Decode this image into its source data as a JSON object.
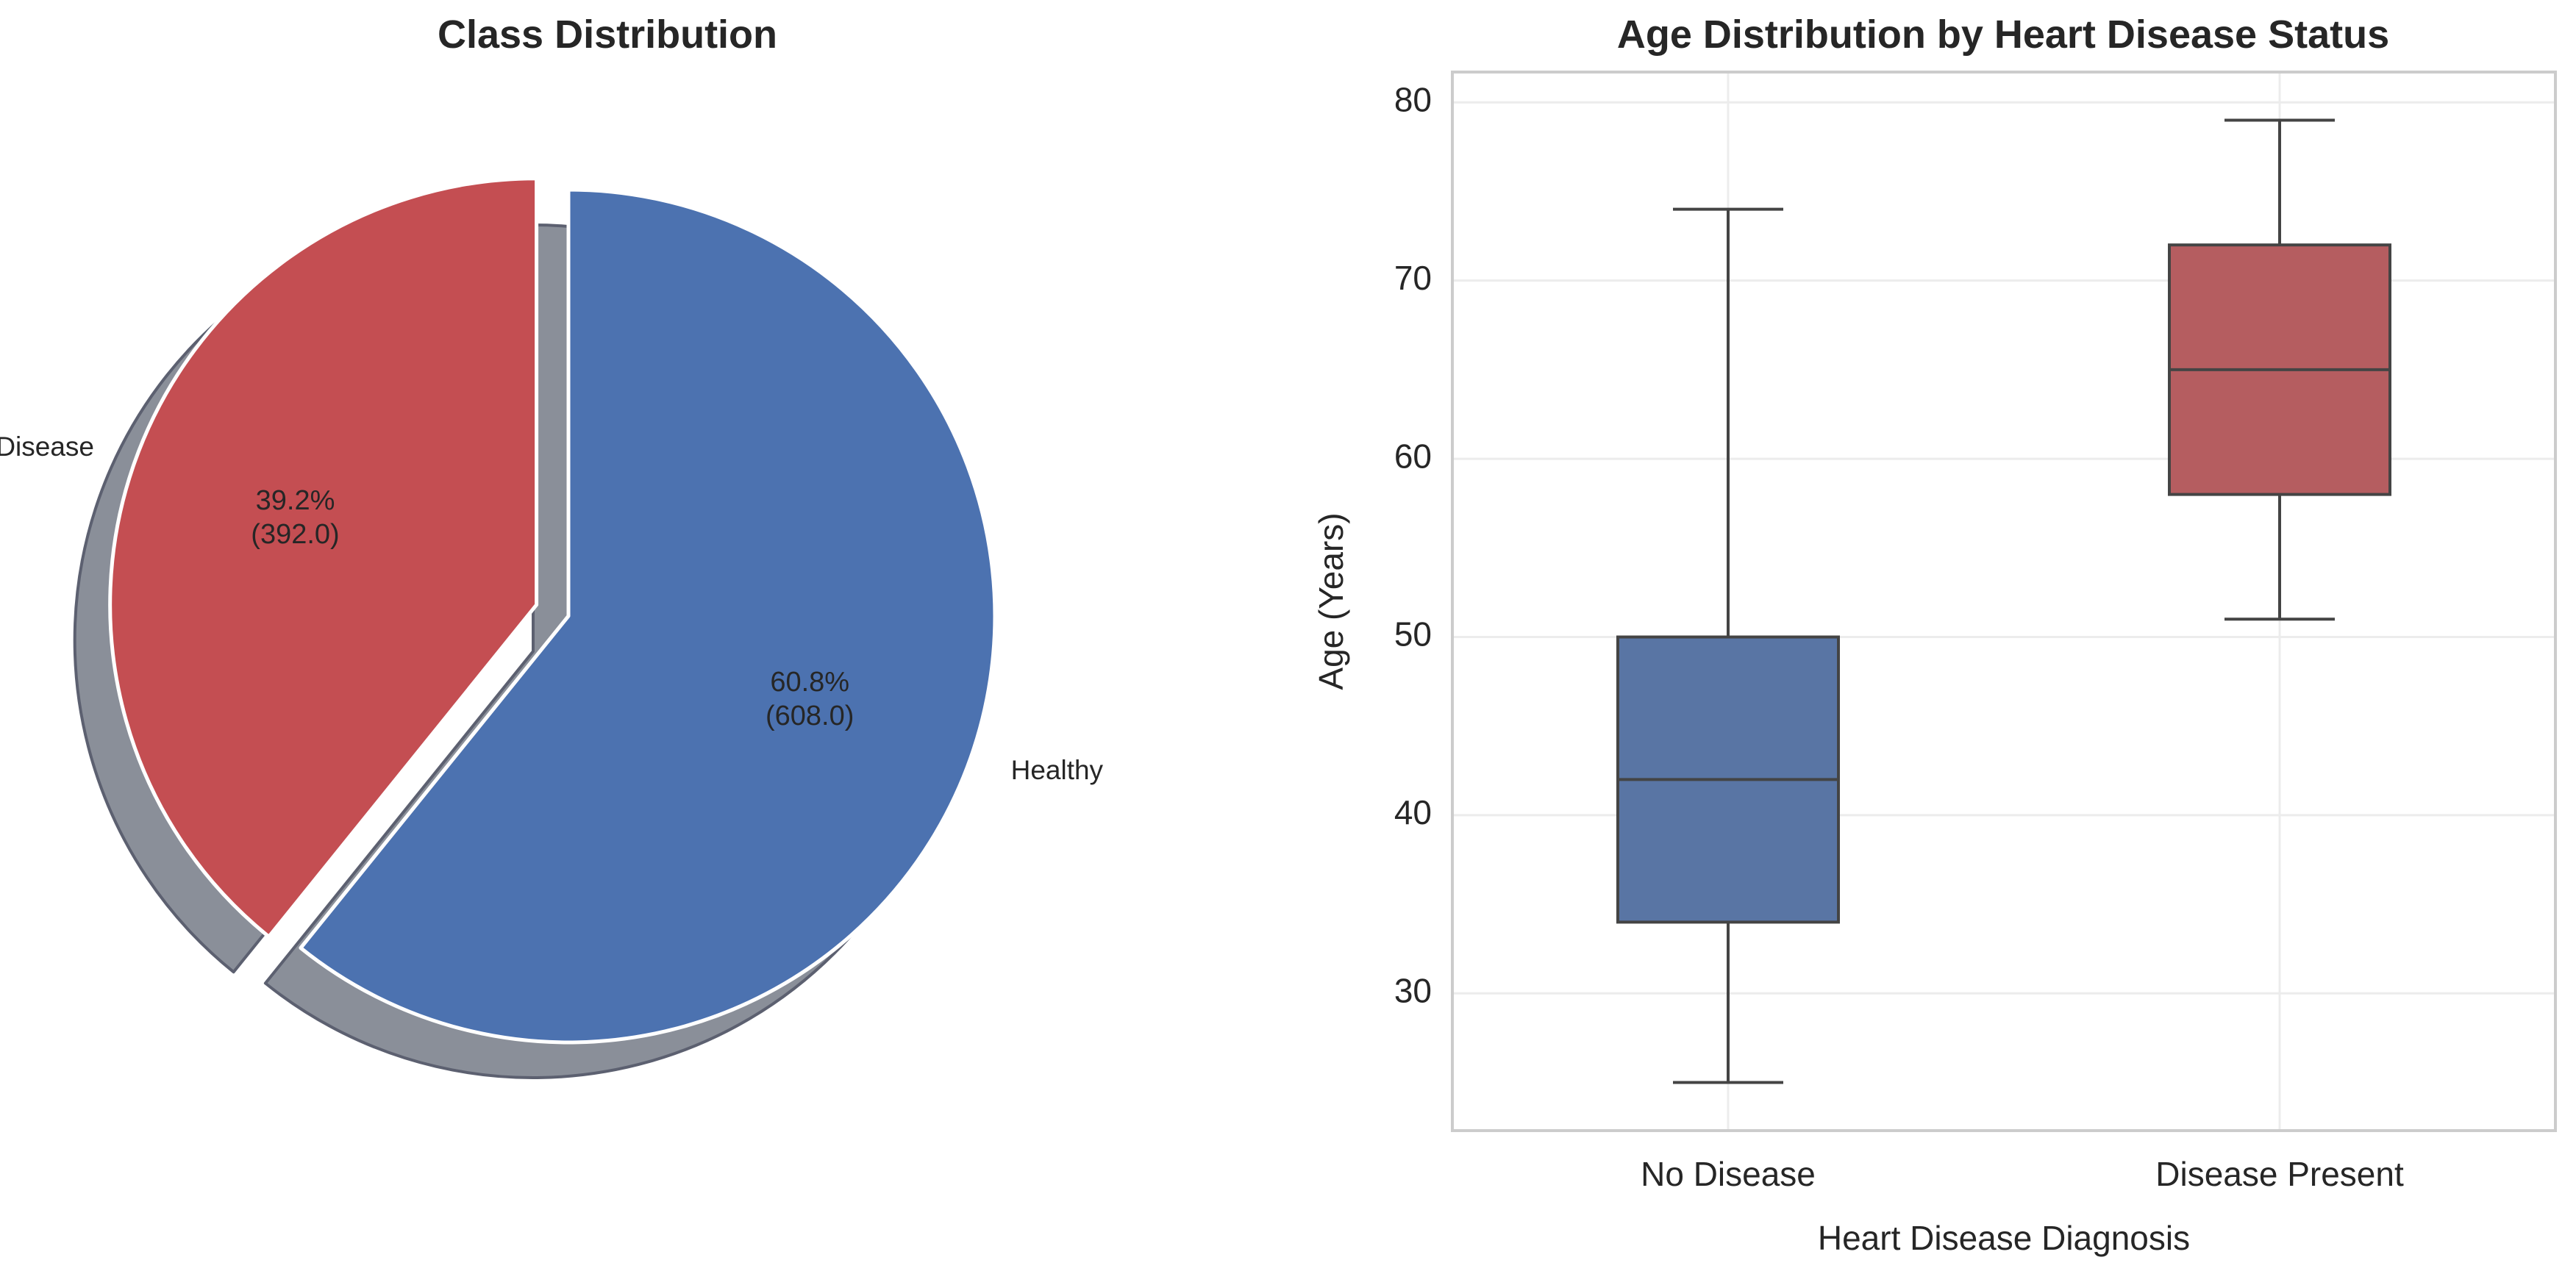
{
  "chart_data": [
    {
      "type": "pie",
      "title": "Class Distribution",
      "slices": [
        {
          "label": "Healthy",
          "value": 608.0,
          "percent": 60.8,
          "pct_label": "60.8%",
          "count_label": "(608.0)",
          "color": "#4C72B0",
          "exploded": false
        },
        {
          "label": "Heart Disease",
          "value": 392.0,
          "percent": 39.2,
          "pct_label": "39.2%",
          "count_label": "(392.0)",
          "color": "#C44E52",
          "exploded": true
        }
      ],
      "start_angle_deg": 90,
      "direction": "clockwise",
      "shadow": true
    },
    {
      "type": "box",
      "title": "Age Distribution by Heart Disease Status",
      "xlabel": "Heart Disease Diagnosis",
      "ylabel": "Age (Years)",
      "ylim": [
        22.3,
        81.7
      ],
      "yticks": [
        30,
        40,
        50,
        60,
        70,
        80
      ],
      "grid": true,
      "categories": [
        "No Disease",
        "Disease Present"
      ],
      "boxes": [
        {
          "category": "No Disease",
          "whisker_low": 25,
          "q1": 34,
          "median": 42,
          "q3": 50,
          "whisker_high": 74,
          "color": "#5975A4"
        },
        {
          "category": "Disease Present",
          "whisker_low": 51,
          "q1": 58,
          "median": 65,
          "q3": 72,
          "whisker_high": 79,
          "color": "#B55D60"
        }
      ]
    }
  ]
}
